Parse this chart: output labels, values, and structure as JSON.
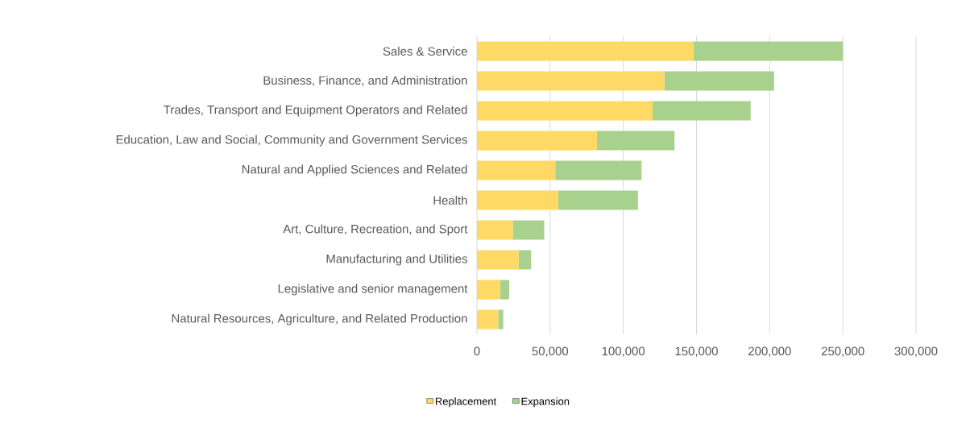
{
  "chart_data": {
    "type": "bar",
    "orientation": "horizontal",
    "stacked": true,
    "categories": [
      "Sales & Service",
      "Business, Finance, and Administration",
      "Trades, Transport and Equipment Operators and Related",
      "Education, Law and Social, Community and Government Services",
      "Natural and Applied Sciences and Related",
      "Health",
      "Art, Culture, Recreation, and Sport",
      "Manufacturing and Utilities",
      "Legislative and senior management",
      "Natural Resources, Agriculture, and Related Production"
    ],
    "series": [
      {
        "name": "Replacement",
        "color": "#ffd966",
        "values": [
          148000,
          128000,
          120000,
          82000,
          53500,
          55500,
          24500,
          28500,
          16000,
          14500
        ]
      },
      {
        "name": "Expansion",
        "color": "#a9d18e",
        "values": [
          102000,
          75000,
          67000,
          53000,
          59000,
          54500,
          21500,
          8500,
          6000,
          3500
        ]
      }
    ],
    "xlim": [
      0,
      300000
    ],
    "xticks": [
      0,
      {
        "value": 50000,
        "label": "50,000"
      },
      {
        "value": 100000,
        "label": "100,000"
      },
      {
        "value": 150000,
        "label": "150,000"
      },
      {
        "value": 200000,
        "label": "200,000"
      },
      {
        "value": 250000,
        "label": "250,000"
      },
      {
        "value": 300000,
        "label": "300,000"
      }
    ],
    "grid": "x",
    "legend": "bottom"
  }
}
